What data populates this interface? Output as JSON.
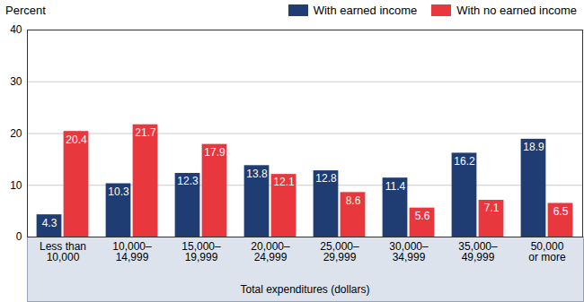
{
  "chart_data": {
    "type": "bar",
    "ylabel": "Percent",
    "xlabel": "Total expenditures (dollars)",
    "categories": [
      "Less than\n10,000",
      "10,000–\n14,999",
      "15,000–\n19,999",
      "20,000–\n24,999",
      "25,000–\n29,999",
      "30,000–\n34,999",
      "35,000–\n49,999",
      "50,000\nor more"
    ],
    "series": [
      {
        "name": "With earned income",
        "color": "#1f3d73",
        "values": [
          4.3,
          10.3,
          12.3,
          13.8,
          12.8,
          11.4,
          16.2,
          18.9
        ]
      },
      {
        "name": "With no earned income",
        "color": "#e8383d",
        "values": [
          20.4,
          21.7,
          17.9,
          12.1,
          8.6,
          5.6,
          7.1,
          6.5
        ]
      }
    ],
    "ylim": [
      0,
      40
    ],
    "yticks": [
      0,
      10,
      20,
      30,
      40
    ],
    "grid": true,
    "legend": "top-right",
    "data_labels": true
  }
}
